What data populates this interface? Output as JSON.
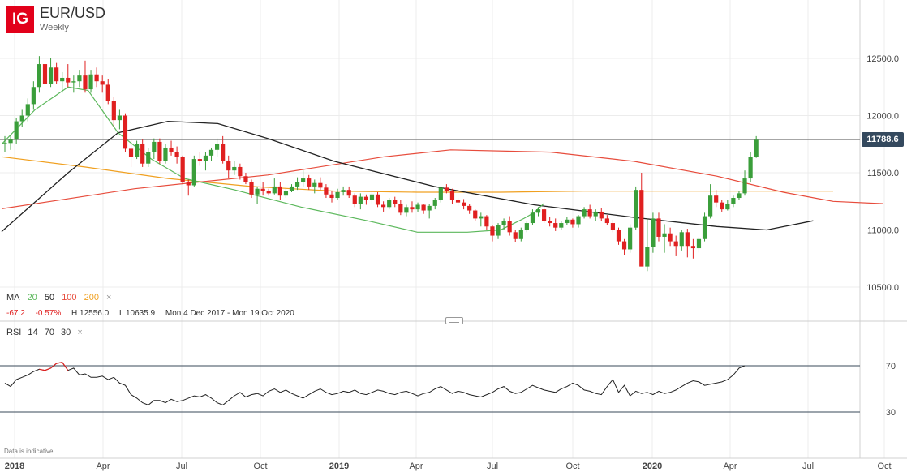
{
  "header": {
    "logo_text": "IG",
    "title": "EUR/USD",
    "interval": "Weekly"
  },
  "ma_legend": {
    "label": "MA",
    "p20": "20",
    "p50": "50",
    "p100": "100",
    "p200": "200",
    "close": "×"
  },
  "stats": {
    "change": "-67.2",
    "change_pct": "-0.57%",
    "high": "H 12556.0",
    "low": "L 10635.9",
    "range": "Mon 4 Dec 2017 - Mon 19 Oct 2020"
  },
  "rsi_legend": {
    "label": "RSI",
    "period": "14",
    "upper": "70",
    "lower": "30",
    "close": "×"
  },
  "disclaimer": "Data is indicative",
  "colors": {
    "up": "#3a9e3a",
    "down": "#e02020",
    "ma20": "#5cb85c",
    "ma50": "#222222",
    "ma100": "#e74c3c",
    "ma200": "#f0a020",
    "rsi": "#222222",
    "rsi_overbought": "#e02020",
    "price_tag": "#34495e"
  },
  "chart_data": [
    {
      "type": "candlestick",
      "title": "EUR/USD",
      "subtitle": "Weekly",
      "x_axis_labels": [
        "2018",
        "Apr",
        "Jul",
        "Oct",
        "2019",
        "Apr",
        "Jul",
        "Oct",
        "2020",
        "Apr",
        "Jul",
        "Oct"
      ],
      "y_axis_labels": [
        "12500.0",
        "12000.0",
        "11500.0",
        "11000.0",
        "10500.0"
      ],
      "ylim": [
        10500,
        12500
      ],
      "current_price": "11788.6",
      "grid": true,
      "ohlc": [
        [
          11750,
          11820,
          11680,
          11760
        ],
        [
          11760,
          11830,
          11700,
          11790
        ],
        [
          11790,
          11980,
          11750,
          11950
        ],
        [
          11950,
          12050,
          11900,
          12000
        ],
        [
          12000,
          12150,
          11950,
          12100
        ],
        [
          12100,
          12300,
          12050,
          12250
        ],
        [
          12250,
          12520,
          12200,
          12450
        ],
        [
          12450,
          12520,
          12250,
          12280
        ],
        [
          12280,
          12500,
          12250,
          12420
        ],
        [
          12420,
          12460,
          12280,
          12300
        ],
        [
          12300,
          12380,
          12200,
          12330
        ],
        [
          12330,
          12450,
          12250,
          12290
        ],
        [
          12290,
          12350,
          12200,
          12300
        ],
        [
          12300,
          12400,
          12250,
          12350
        ],
        [
          12350,
          12480,
          12200,
          12230
        ],
        [
          12230,
          12400,
          12200,
          12360
        ],
        [
          12360,
          12420,
          12250,
          12300
        ],
        [
          12300,
          12350,
          12200,
          12270
        ],
        [
          12270,
          12320,
          12100,
          12130
        ],
        [
          12130,
          12160,
          11900,
          11960
        ],
        [
          11960,
          12050,
          11880,
          12000
        ],
        [
          12000,
          12020,
          11680,
          11710
        ],
        [
          11710,
          11800,
          11550,
          11640
        ],
        [
          11640,
          11780,
          11620,
          11750
        ],
        [
          11750,
          11790,
          11550,
          11580
        ],
        [
          11580,
          11720,
          11550,
          11680
        ],
        [
          11680,
          11800,
          11620,
          11770
        ],
        [
          11770,
          11800,
          11580,
          11600
        ],
        [
          11600,
          11750,
          11580,
          11720
        ],
        [
          11720,
          11780,
          11650,
          11680
        ],
        [
          11680,
          11730,
          11580,
          11640
        ],
        [
          11640,
          11650,
          11400,
          11420
        ],
        [
          11420,
          11440,
          11300,
          11390
        ],
        [
          11390,
          11650,
          11380,
          11620
        ],
        [
          11620,
          11680,
          11560,
          11600
        ],
        [
          11600,
          11680,
          11520,
          11650
        ],
        [
          11650,
          11720,
          11600,
          11700
        ],
        [
          11700,
          11800,
          11640,
          11750
        ],
        [
          11750,
          11820,
          11580,
          11600
        ],
        [
          11600,
          11650,
          11450,
          11520
        ],
        [
          11520,
          11600,
          11480,
          11550
        ],
        [
          11550,
          11580,
          11440,
          11470
        ],
        [
          11470,
          11500,
          11400,
          11420
        ],
        [
          11420,
          11440,
          11280,
          11310
        ],
        [
          11310,
          11380,
          11230,
          11360
        ],
        [
          11360,
          11420,
          11300,
          11340
        ],
        [
          11340,
          11360,
          11300,
          11320
        ],
        [
          11320,
          11450,
          11310,
          11380
        ],
        [
          11380,
          11420,
          11260,
          11300
        ],
        [
          11300,
          11360,
          11280,
          11340
        ],
        [
          11340,
          11400,
          11330,
          11380
        ],
        [
          11380,
          11460,
          11350,
          11420
        ],
        [
          11420,
          11520,
          11380,
          11450
        ],
        [
          11450,
          11480,
          11350,
          11380
        ],
        [
          11380,
          11440,
          11320,
          11410
        ],
        [
          11410,
          11460,
          11350,
          11370
        ],
        [
          11370,
          11400,
          11280,
          11310
        ],
        [
          11310,
          11340,
          11240,
          11280
        ],
        [
          11280,
          11360,
          11260,
          11330
        ],
        [
          11330,
          11380,
          11300,
          11350
        ],
        [
          11350,
          11380,
          11280,
          11300
        ],
        [
          11300,
          11320,
          11200,
          11230
        ],
        [
          11230,
          11320,
          11180,
          11290
        ],
        [
          11290,
          11310,
          11220,
          11260
        ],
        [
          11260,
          11340,
          11230,
          11310
        ],
        [
          11310,
          11330,
          11200,
          11220
        ],
        [
          11220,
          11250,
          11160,
          11200
        ],
        [
          11200,
          11280,
          11180,
          11260
        ],
        [
          11260,
          11290,
          11200,
          11230
        ],
        [
          11230,
          11260,
          11130,
          11150
        ],
        [
          11150,
          11220,
          11120,
          11200
        ],
        [
          11200,
          11250,
          11150,
          11180
        ],
        [
          11180,
          11240,
          11160,
          11220
        ],
        [
          11220,
          11230,
          11140,
          11170
        ],
        [
          11170,
          11230,
          11100,
          11210
        ],
        [
          11210,
          11280,
          11180,
          11260
        ],
        [
          11260,
          11380,
          11240,
          11370
        ],
        [
          11370,
          11400,
          11320,
          11340
        ],
        [
          11340,
          11360,
          11230,
          11260
        ],
        [
          11260,
          11280,
          11210,
          11240
        ],
        [
          11240,
          11270,
          11180,
          11210
        ],
        [
          11210,
          11230,
          11140,
          11170
        ],
        [
          11170,
          11180,
          11080,
          11100
        ],
        [
          11100,
          11150,
          11030,
          11120
        ],
        [
          11120,
          11130,
          11000,
          11030
        ],
        [
          11030,
          11040,
          10900,
          10950
        ],
        [
          10950,
          11060,
          10920,
          11040
        ],
        [
          11040,
          11100,
          11000,
          11080
        ],
        [
          11080,
          11120,
          10950,
          10980
        ],
        [
          10980,
          11000,
          10890,
          10920
        ],
        [
          10920,
          11020,
          10900,
          11000
        ],
        [
          11000,
          11080,
          10980,
          11060
        ],
        [
          11060,
          11180,
          11040,
          11150
        ],
        [
          11150,
          11200,
          11120,
          11180
        ],
        [
          11180,
          11200,
          11060,
          11080
        ],
        [
          11080,
          11110,
          11030,
          11060
        ],
        [
          11060,
          11100,
          10990,
          11020
        ],
        [
          11020,
          11080,
          11000,
          11060
        ],
        [
          11060,
          11110,
          11040,
          11090
        ],
        [
          11090,
          11100,
          11020,
          11050
        ],
        [
          11050,
          11130,
          11020,
          11120
        ],
        [
          11120,
          11200,
          11100,
          11180
        ],
        [
          11180,
          11220,
          11100,
          11120
        ],
        [
          11120,
          11180,
          11080,
          11160
        ],
        [
          11160,
          11190,
          11080,
          11100
        ],
        [
          11100,
          11130,
          11040,
          11060
        ],
        [
          11060,
          11090,
          10980,
          11000
        ],
        [
          11000,
          11020,
          10870,
          10900
        ],
        [
          10900,
          10920,
          10780,
          10830
        ],
        [
          10830,
          11050,
          10800,
          11020
        ],
        [
          11020,
          11380,
          11000,
          11350
        ],
        [
          11350,
          11500,
          10700,
          10680
        ],
        [
          10680,
          11100,
          10640,
          10850
        ],
        [
          10850,
          11150,
          10800,
          11100
        ],
        [
          11100,
          11150,
          10900,
          10940
        ],
        [
          10940,
          11050,
          10800,
          10970
        ],
        [
          10970,
          11020,
          10860,
          10900
        ],
        [
          10900,
          10950,
          10770,
          10860
        ],
        [
          10860,
          11000,
          10820,
          10980
        ],
        [
          10980,
          11010,
          10760,
          10860
        ],
        [
          10860,
          10920,
          10750,
          10840
        ],
        [
          10840,
          10940,
          10800,
          10920
        ],
        [
          10920,
          11150,
          10900,
          11120
        ],
        [
          11120,
          11400,
          11100,
          11300
        ],
        [
          11300,
          11350,
          11200,
          11240
        ],
        [
          11240,
          11260,
          11160,
          11180
        ],
        [
          11180,
          11260,
          11170,
          11230
        ],
        [
          11230,
          11300,
          11200,
          11280
        ],
        [
          11280,
          11340,
          11260,
          11320
        ],
        [
          11320,
          11520,
          11300,
          11450
        ],
        [
          11450,
          11680,
          11420,
          11640
        ],
        [
          11640,
          11820,
          11630,
          11788
        ]
      ],
      "ma_periods": [
        20,
        50,
        100,
        200
      ],
      "ma20": [
        [
          0,
          11750
        ],
        [
          10,
          12050
        ],
        [
          20,
          12250
        ],
        [
          26,
          12220
        ],
        [
          35,
          11850
        ],
        [
          45,
          11620
        ],
        [
          55,
          11450
        ],
        [
          70,
          11350
        ],
        [
          90,
          11200
        ],
        [
          110,
          11080
        ],
        [
          125,
          10980
        ],
        [
          140,
          10980
        ],
        [
          150,
          11000
        ],
        [
          157,
          11100
        ],
        [
          160,
          11150
        ],
        [
          163,
          11230
        ]
      ],
      "ma50": [
        [
          0,
          10985
        ],
        [
          20,
          11500
        ],
        [
          35,
          11850
        ],
        [
          50,
          11950
        ],
        [
          65,
          11930
        ],
        [
          80,
          11800
        ],
        [
          100,
          11600
        ],
        [
          130,
          11380
        ],
        [
          160,
          11220
        ],
        [
          190,
          11110
        ],
        [
          215,
          11030
        ],
        [
          230,
          11000
        ],
        [
          237,
          11040
        ],
        [
          244,
          11080
        ]
      ],
      "ma100": [
        [
          0,
          11185
        ],
        [
          40,
          11360
        ],
        [
          80,
          11480
        ],
        [
          115,
          11640
        ],
        [
          135,
          11700
        ],
        [
          165,
          11680
        ],
        [
          190,
          11600
        ],
        [
          215,
          11470
        ],
        [
          235,
          11330
        ],
        [
          250,
          11250
        ],
        [
          265,
          11230
        ]
      ],
      "ma200": [
        [
          0,
          11640
        ],
        [
          25,
          11550
        ],
        [
          50,
          11450
        ],
        [
          75,
          11380
        ],
        [
          100,
          11340
        ],
        [
          125,
          11330
        ],
        [
          150,
          11330
        ],
        [
          175,
          11340
        ],
        [
          200,
          11340
        ],
        [
          225,
          11340
        ],
        [
          240,
          11340
        ],
        [
          250,
          11340
        ]
      ],
      "rsi": [
        55,
        52,
        58,
        60,
        62,
        65,
        67,
        66,
        68,
        72,
        73,
        66,
        68,
        62,
        63,
        60,
        60,
        61,
        58,
        60,
        55,
        53,
        45,
        42,
        38,
        36,
        40,
        40,
        38,
        41,
        39,
        40,
        42,
        44,
        43,
        45,
        42,
        38,
        36,
        40,
        44,
        47,
        43,
        45,
        46,
        44,
        48,
        50,
        47,
        49,
        46,
        44,
        42,
        45,
        48,
        50,
        47,
        45,
        46,
        48,
        47,
        49,
        46,
        45,
        47,
        49,
        48,
        46,
        45,
        47,
        48,
        46,
        44,
        46,
        47,
        50,
        52,
        49,
        46,
        48,
        47,
        45,
        44,
        43,
        45,
        47,
        50,
        52,
        48,
        46,
        47,
        50,
        53,
        51,
        49,
        48,
        47,
        50,
        52,
        55,
        53,
        49,
        48,
        46,
        45,
        52,
        58,
        47,
        53,
        44,
        48,
        46,
        47,
        45,
        48,
        46,
        47,
        49,
        52,
        55,
        57,
        56,
        53,
        54,
        55,
        56,
        58,
        62,
        68,
        70
      ]
    }
  ]
}
